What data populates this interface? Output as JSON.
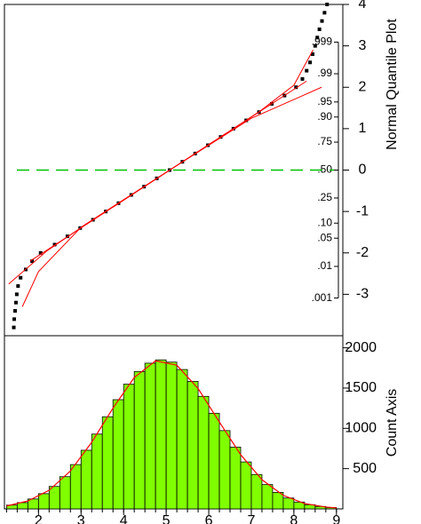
{
  "chart_data": [
    {
      "type": "scatter",
      "y_label": "Normal Quantile Plot",
      "color": "#000000",
      "x": [
        1.42,
        1.43,
        1.45,
        1.47,
        1.49,
        1.52,
        1.58,
        1.7,
        1.85,
        2.05,
        2.38,
        2.68,
        2.98,
        3.28,
        3.58,
        3.88,
        4.18,
        4.48,
        4.78,
        5.08,
        5.38,
        5.68,
        5.98,
        6.28,
        6.58,
        6.88,
        7.18,
        7.48,
        7.78,
        8.05,
        8.2,
        8.3,
        8.38,
        8.44,
        8.5,
        8.55,
        8.6,
        8.66,
        8.72,
        8.78
      ],
      "y": [
        -3.8,
        -3.6,
        -3.4,
        -3.2,
        -3.0,
        -2.8,
        -2.6,
        -2.4,
        -2.2,
        -2.0,
        -1.8,
        -1.6,
        -1.4,
        -1.2,
        -1.0,
        -0.8,
        -0.6,
        -0.4,
        -0.2,
        0,
        0.2,
        0.4,
        0.6,
        0.8,
        1.0,
        1.2,
        1.4,
        1.6,
        1.8,
        2.0,
        2.2,
        2.4,
        2.6,
        2.8,
        3.0,
        3.2,
        3.4,
        3.6,
        3.8,
        4.0
      ],
      "lines": [
        {
          "color": "#ff0000",
          "x": [
            1.8,
            8.3
          ],
          "y": [
            -2.2,
            2.15
          ]
        },
        {
          "color": "#ff0000",
          "x": [
            1.62,
            2.0,
            3.0,
            5.08,
            7.2,
            8.0,
            8.45
          ],
          "y": [
            -3.3,
            -2.45,
            -1.38,
            0,
            1.42,
            2.05,
            2.9
          ]
        },
        {
          "color": "#ff0000",
          "x": [
            1.3,
            2.2,
            3.2,
            5.08,
            7.0,
            8.1,
            8.65
          ],
          "y": [
            -2.75,
            -1.95,
            -1.25,
            0,
            1.25,
            1.75,
            2.0
          ]
        }
      ],
      "hline": {
        "value": 0,
        "color": "#00c000"
      },
      "xlim": [
        1.2,
        9.15
      ],
      "ylim": [
        -4,
        4
      ],
      "yticks": [
        -3,
        -2,
        -1,
        0,
        1,
        2,
        3,
        4
      ],
      "prob_ticks": [
        {
          "value": 0.001,
          "label": ".001"
        },
        {
          "value": 0.01,
          "label": ".01"
        },
        {
          "value": 0.05,
          "label": ".05"
        },
        {
          "value": 0.1,
          "label": ".10"
        },
        {
          "value": 0.25,
          "label": ".25"
        },
        {
          "value": 0.5,
          "label": ".50"
        },
        {
          "value": 0.75,
          "label": ".75"
        },
        {
          "value": 0.9,
          "label": ".90"
        },
        {
          "value": 0.95,
          "label": ".95"
        },
        {
          "value": 0.99,
          "label": ".99"
        },
        {
          "value": 0.999,
          "label": ".999"
        }
      ]
    },
    {
      "type": "histogram",
      "y_label": "Count Axis",
      "color": "#80ff00",
      "bins": [
        1.25,
        1.5,
        1.75,
        2.0,
        2.25,
        2.5,
        2.75,
        3.0,
        3.25,
        3.5,
        3.75,
        4.0,
        4.25,
        4.5,
        4.75,
        5.0,
        5.25,
        5.5,
        5.75,
        6.0,
        6.25,
        6.5,
        6.75,
        7.0,
        7.25,
        7.5,
        7.75,
        8.0,
        8.25,
        8.5,
        8.75,
        9.0
      ],
      "counts": [
        47,
        78,
        123,
        189,
        279,
        400,
        550,
        728,
        929,
        1144,
        1356,
        1548,
        1705,
        1809,
        1850,
        1822,
        1730,
        1583,
        1397,
        1187,
        972,
        767,
        583,
        427,
        302,
        205,
        135,
        85,
        52,
        30,
        17
      ],
      "curve": {
        "color": "#ff0000",
        "x": [
          1.25,
          1.75,
          2.25,
          2.75,
          3.25,
          3.75,
          4.25,
          4.75,
          5.25,
          5.75,
          6.25,
          6.75,
          7.25,
          7.75,
          8.25,
          8.75,
          9.0
        ],
        "values": [
          36,
          98,
          231,
          471,
          827,
          1251,
          1632,
          1838,
          1784,
          1494,
          1079,
          672,
          362,
          168,
          67,
          23,
          13
        ]
      },
      "xlim": [
        1.2,
        9.15
      ],
      "xticks": [
        2,
        3,
        4,
        5,
        6,
        7,
        8,
        9
      ],
      "ylim": [
        0,
        2150
      ],
      "yticks": [
        500,
        1000,
        1500,
        2000
      ]
    }
  ]
}
